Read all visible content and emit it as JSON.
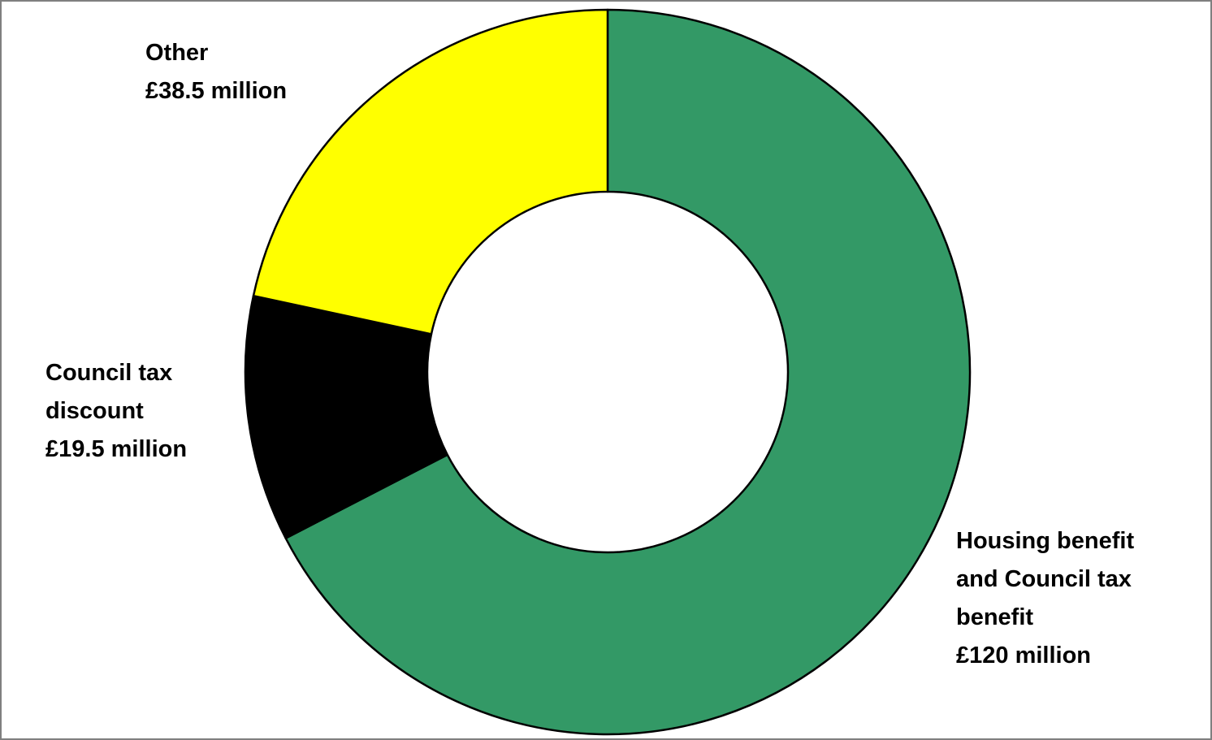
{
  "chart_data": {
    "type": "pie",
    "variant": "donut",
    "title": "",
    "slices": [
      {
        "name": "Housing benefit and Council tax benefit",
        "value": 120,
        "unit": "£ million",
        "color": "#339966",
        "label_lines": [
          "Housing benefit",
          "and Council tax",
          "benefit",
          "£120 million"
        ]
      },
      {
        "name": "Council tax discount",
        "value": 19.5,
        "unit": "£ million",
        "color": "#000000",
        "label_lines": [
          "Council tax",
          "discount",
          "£19.5 million"
        ]
      },
      {
        "name": "Other",
        "value": 38.5,
        "unit": "£ million",
        "color": "#ffff00",
        "label_lines": [
          "Other",
          "£38.5 million"
        ]
      }
    ],
    "start_angle": "12 o'clock",
    "direction": "clockwise",
    "legend": "none",
    "outline_color": "#000000"
  }
}
